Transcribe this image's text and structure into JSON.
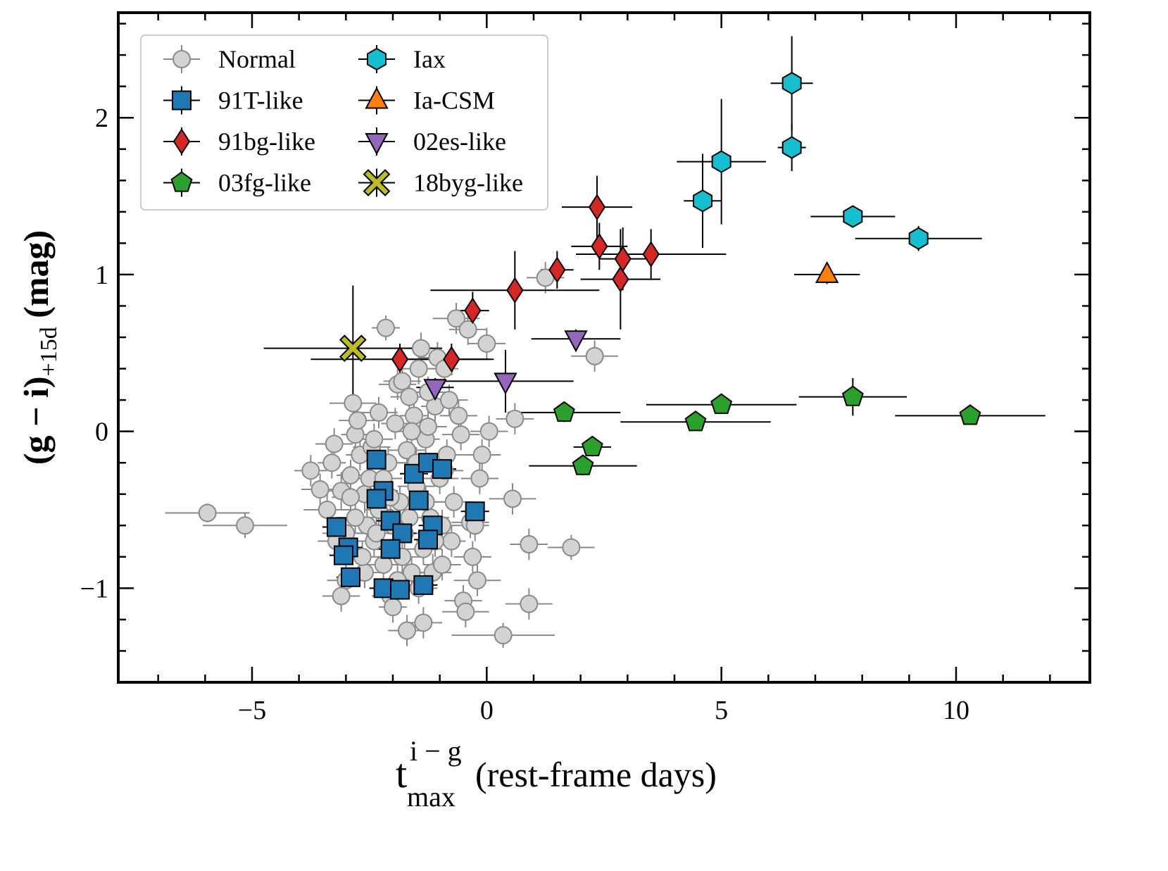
{
  "chart_data": {
    "type": "scatter",
    "xlim": [
      -7.85,
      12.85
    ],
    "ylim": [
      -1.6,
      2.67
    ],
    "x_ticks_major": [
      -5,
      0,
      5,
      10
    ],
    "y_ticks_major": [
      -1,
      0,
      1,
      2
    ],
    "x_tick_labels": [
      "−5",
      "0",
      "5",
      "10"
    ],
    "y_tick_labels": [
      "−1",
      "0",
      "1",
      "2"
    ],
    "x_minor_step": 1,
    "y_minor_step": 0.2,
    "xlabel": {
      "base": "t",
      "sup": "i − g",
      "sub": "max",
      "rest": " (rest-frame days)"
    },
    "ylabel": {
      "main": "(g − i)",
      "sub": "+15d",
      "rest": " (mag)"
    },
    "legend": {
      "placement": "upper-left",
      "columns": 2
    },
    "series": [
      {
        "name": "Normal",
        "marker": "circle",
        "color": "#d3d3d3",
        "edge": "#8a8a8a",
        "err_color": "#8a8a8a",
        "points": [
          [
            -5.95,
            -0.52,
            0.9,
            0.06
          ],
          [
            -5.15,
            -0.6,
            0.9,
            0.08
          ],
          [
            -3.75,
            -0.25,
            0.35,
            0.1
          ],
          [
            -3.55,
            -0.37,
            0.4,
            0.1
          ],
          [
            -3.4,
            -0.5,
            0.5,
            0.1
          ],
          [
            -3.3,
            -0.2,
            0.3,
            0.1
          ],
          [
            -3.25,
            -0.08,
            0.4,
            0.1
          ],
          [
            -3.1,
            -0.38,
            0.3,
            0.12
          ],
          [
            -3.0,
            -0.65,
            0.5,
            0.1
          ],
          [
            -2.9,
            -0.28,
            0.3,
            0.1
          ],
          [
            -2.85,
            0.18,
            0.5,
            0.1
          ],
          [
            -2.8,
            -0.02,
            0.3,
            0.1
          ],
          [
            -2.75,
            0.07,
            0.4,
            0.1
          ],
          [
            -2.7,
            -0.15,
            0.3,
            0.1
          ],
          [
            -2.6,
            -0.4,
            0.4,
            0.12
          ],
          [
            -2.55,
            -0.6,
            0.3,
            0.1
          ],
          [
            -2.5,
            -0.3,
            0.4,
            0.1
          ],
          [
            -2.45,
            -0.1,
            0.4,
            0.1
          ],
          [
            -2.4,
            -0.7,
            0.4,
            0.1
          ],
          [
            -2.3,
            -0.5,
            0.3,
            0.1
          ],
          [
            -2.2,
            -0.85,
            0.4,
            0.12
          ],
          [
            -2.15,
            0.66,
            0.3,
            0.08
          ],
          [
            -2.1,
            -0.2,
            0.4,
            0.1
          ],
          [
            -2.05,
            -1.05,
            0.4,
            0.1
          ],
          [
            -2.0,
            -1.12,
            0.3,
            0.1
          ],
          [
            -1.95,
            0.05,
            0.3,
            0.1
          ],
          [
            -1.9,
            0.3,
            0.4,
            0.1
          ],
          [
            -1.85,
            -0.45,
            0.4,
            0.1
          ],
          [
            -1.8,
            0.32,
            0.4,
            0.1
          ],
          [
            -1.75,
            -0.65,
            0.3,
            0.1
          ],
          [
            -1.7,
            -0.12,
            0.4,
            0.12
          ],
          [
            -1.65,
            0.22,
            0.4,
            0.1
          ],
          [
            -1.6,
            -0.9,
            0.4,
            0.1
          ],
          [
            -1.55,
            0.1,
            0.3,
            0.1
          ],
          [
            -1.5,
            -0.35,
            0.4,
            0.1
          ],
          [
            -1.45,
            0.4,
            0.4,
            0.1
          ],
          [
            -1.4,
            0.53,
            0.3,
            0.1
          ],
          [
            -1.35,
            -0.75,
            0.4,
            0.1
          ],
          [
            -1.3,
            -0.05,
            0.3,
            0.1
          ],
          [
            -1.25,
            0.03,
            0.4,
            0.1
          ],
          [
            -1.2,
            -0.55,
            0.4,
            0.1
          ],
          [
            -1.15,
            -0.9,
            0.4,
            0.12
          ],
          [
            -1.1,
            0.16,
            0.3,
            0.1
          ],
          [
            -1.05,
            0.47,
            0.4,
            0.1
          ],
          [
            -1.0,
            -0.3,
            0.4,
            0.1
          ],
          [
            -0.95,
            -0.6,
            0.4,
            0.1
          ],
          [
            -0.9,
            0.4,
            0.3,
            0.1
          ],
          [
            -0.85,
            -0.15,
            0.4,
            0.1
          ],
          [
            -0.8,
            0.2,
            0.4,
            0.1
          ],
          [
            -0.75,
            -0.7,
            0.3,
            0.1
          ],
          [
            -0.7,
            -0.45,
            0.4,
            0.1
          ],
          [
            -0.65,
            0.72,
            0.5,
            0.1
          ],
          [
            -0.6,
            0.1,
            0.4,
            0.1
          ],
          [
            -0.55,
            -0.02,
            0.4,
            0.1
          ],
          [
            -0.5,
            -1.08,
            0.4,
            0.1
          ],
          [
            -0.45,
            -1.15,
            0.5,
            0.1
          ],
          [
            -0.4,
            0.65,
            0.4,
            0.1
          ],
          [
            -0.35,
            -0.58,
            0.4,
            0.1
          ],
          [
            -0.3,
            -0.8,
            0.4,
            0.1
          ],
          [
            -0.25,
            -0.6,
            0.3,
            0.1
          ],
          [
            -0.2,
            -0.95,
            0.5,
            0.1
          ],
          [
            -0.15,
            -0.3,
            0.4,
            0.1
          ],
          [
            -0.1,
            -0.15,
            0.4,
            0.1
          ],
          [
            0.0,
            0.56,
            0.4,
            0.1
          ],
          [
            0.05,
            0.0,
            0.4,
            0.1
          ],
          [
            0.35,
            -1.3,
            1.1,
            0.08
          ],
          [
            0.6,
            0.08,
            0.4,
            0.1
          ],
          [
            0.55,
            -0.43,
            0.5,
            0.1
          ],
          [
            0.9,
            -0.72,
            0.4,
            0.1
          ],
          [
            0.9,
            -1.1,
            0.5,
            0.1
          ],
          [
            1.25,
            0.98,
            0.4,
            0.1
          ],
          [
            1.8,
            -0.74,
            0.5,
            0.08
          ],
          [
            2.3,
            0.48,
            0.5,
            0.1
          ],
          [
            -2.4,
            -0.05,
            0.4,
            0.1
          ],
          [
            -2.2,
            -0.3,
            0.4,
            0.1
          ],
          [
            -2.0,
            -0.6,
            0.4,
            0.1
          ],
          [
            -1.8,
            -0.8,
            0.4,
            0.1
          ],
          [
            -1.5,
            -0.2,
            0.4,
            0.1
          ],
          [
            -1.3,
            -0.45,
            0.4,
            0.1
          ],
          [
            -2.6,
            -0.9,
            0.4,
            0.1
          ],
          [
            -2.8,
            -0.55,
            0.4,
            0.1
          ],
          [
            -3.0,
            -0.95,
            0.4,
            0.1
          ],
          [
            -1.6,
            0.0,
            0.4,
            0.1
          ],
          [
            -1.9,
            -0.95,
            0.4,
            0.1
          ],
          [
            -1.1,
            -0.7,
            0.4,
            0.1
          ],
          [
            -0.9,
            -0.25,
            0.4,
            0.1
          ],
          [
            -2.3,
            0.12,
            0.4,
            0.1
          ],
          [
            -1.7,
            -1.27,
            0.4,
            0.1
          ],
          [
            -1.35,
            -1.22,
            0.4,
            0.1
          ],
          [
            -3.1,
            -1.05,
            0.4,
            0.1
          ],
          [
            -2.65,
            -0.8,
            0.4,
            0.1
          ],
          [
            -2.05,
            -0.42,
            0.4,
            0.1
          ],
          [
            -1.25,
            0.25,
            0.4,
            0.1
          ],
          [
            -0.95,
            -0.85,
            0.4,
            0.1
          ],
          [
            -3.2,
            -0.7,
            0.4,
            0.1
          ],
          [
            -2.35,
            -0.65,
            0.4,
            0.1
          ],
          [
            -1.65,
            -0.55,
            0.4,
            0.1
          ],
          [
            -2.9,
            -0.42,
            0.4,
            0.1
          ],
          [
            -1.45,
            -1.0,
            0.4,
            0.1
          ]
        ]
      },
      {
        "name": "91T-like",
        "marker": "square",
        "color": "#1f77b4",
        "edge": "#000000",
        "err_color": "#000000",
        "points": [
          [
            -2.35,
            -0.18,
            0.3,
            0.06
          ],
          [
            -1.55,
            -0.27,
            0.3,
            0.06
          ],
          [
            -1.25,
            -0.2,
            0.3,
            0.06
          ],
          [
            -0.95,
            -0.24,
            0.3,
            0.06
          ],
          [
            -2.2,
            -0.38,
            0.3,
            0.06
          ],
          [
            -2.35,
            -0.43,
            0.3,
            0.06
          ],
          [
            -1.45,
            -0.44,
            0.3,
            0.06
          ],
          [
            -0.25,
            -0.51,
            0.3,
            0.06
          ],
          [
            -2.05,
            -0.57,
            0.3,
            0.06
          ],
          [
            -1.15,
            -0.6,
            0.3,
            0.06
          ],
          [
            -3.2,
            -0.61,
            0.3,
            0.06
          ],
          [
            -1.8,
            -0.65,
            0.3,
            0.06
          ],
          [
            -1.25,
            -0.69,
            0.3,
            0.06
          ],
          [
            -2.95,
            -0.74,
            0.3,
            0.06
          ],
          [
            -2.05,
            -0.75,
            0.3,
            0.06
          ],
          [
            -3.05,
            -0.79,
            0.3,
            0.06
          ],
          [
            -2.9,
            -0.93,
            0.3,
            0.06
          ],
          [
            -2.2,
            -1.0,
            0.3,
            0.06
          ],
          [
            -1.85,
            -1.01,
            0.3,
            0.06
          ],
          [
            -1.35,
            -0.98,
            0.3,
            0.06
          ]
        ]
      },
      {
        "name": "91bg-like",
        "marker": "diamond",
        "color": "#d62728",
        "edge": "#000000",
        "err_color": "#000000",
        "points": [
          [
            2.35,
            1.43,
            0.75,
            0.2
          ],
          [
            2.4,
            1.18,
            0.6,
            0.15
          ],
          [
            2.9,
            1.1,
            0.5,
            0.2
          ],
          [
            3.5,
            1.13,
            1.6,
            0.16
          ],
          [
            1.5,
            1.03,
            0.35,
            0.12
          ],
          [
            2.85,
            0.97,
            0.85,
            0.32
          ],
          [
            0.6,
            0.9,
            1.8,
            0.25
          ],
          [
            -0.3,
            0.77,
            0.35,
            0.12
          ],
          [
            -0.75,
            0.46,
            0.9,
            0.1
          ],
          [
            -1.85,
            0.46,
            1.9,
            0.1
          ]
        ]
      },
      {
        "name": "03fg-like",
        "marker": "pentagon",
        "color": "#2ca02c",
        "edge": "#000000",
        "err_color": "#000000",
        "points": [
          [
            1.65,
            0.12,
            1.2,
            0.06
          ],
          [
            2.25,
            -0.1,
            0.4,
            0.06
          ],
          [
            2.05,
            -0.22,
            1.15,
            0.06
          ],
          [
            4.45,
            0.06,
            1.6,
            0.05
          ],
          [
            5.0,
            0.17,
            1.6,
            0.05
          ],
          [
            7.8,
            0.22,
            1.15,
            0.12
          ],
          [
            10.3,
            0.1,
            1.6,
            0.05
          ]
        ]
      },
      {
        "name": "Iax",
        "marker": "hexagon",
        "color": "#17becf",
        "edge": "#000000",
        "err_color": "#000000",
        "points": [
          [
            6.5,
            2.22,
            0.45,
            0.3
          ],
          [
            6.5,
            1.81,
            0.3,
            0.15
          ],
          [
            5.0,
            1.72,
            0.95,
            0.4
          ],
          [
            4.6,
            1.47,
            0.4,
            0.3
          ],
          [
            7.8,
            1.37,
            0.9,
            0.06
          ],
          [
            9.2,
            1.23,
            1.35,
            0.08
          ]
        ]
      },
      {
        "name": "Ia-CSM",
        "marker": "triangle-up",
        "color": "#ff7f0e",
        "edge": "#000000",
        "err_color": "#000000",
        "points": [
          [
            7.25,
            1.0,
            0.7,
            0.06
          ]
        ]
      },
      {
        "name": "02es-like",
        "marker": "triangle-down",
        "color": "#9467bd",
        "edge": "#000000",
        "err_color": "#000000",
        "points": [
          [
            1.9,
            0.59,
            0.95,
            0.06
          ],
          [
            0.4,
            0.32,
            1.45,
            0.2
          ],
          [
            -1.1,
            0.28,
            0.4,
            0.06
          ]
        ]
      },
      {
        "name": "18byg-like",
        "marker": "x",
        "color": "#bcbd22",
        "edge": "#000000",
        "err_color": "#000000",
        "points": [
          [
            -2.85,
            0.53,
            1.9,
            0.4
          ]
        ]
      }
    ]
  }
}
